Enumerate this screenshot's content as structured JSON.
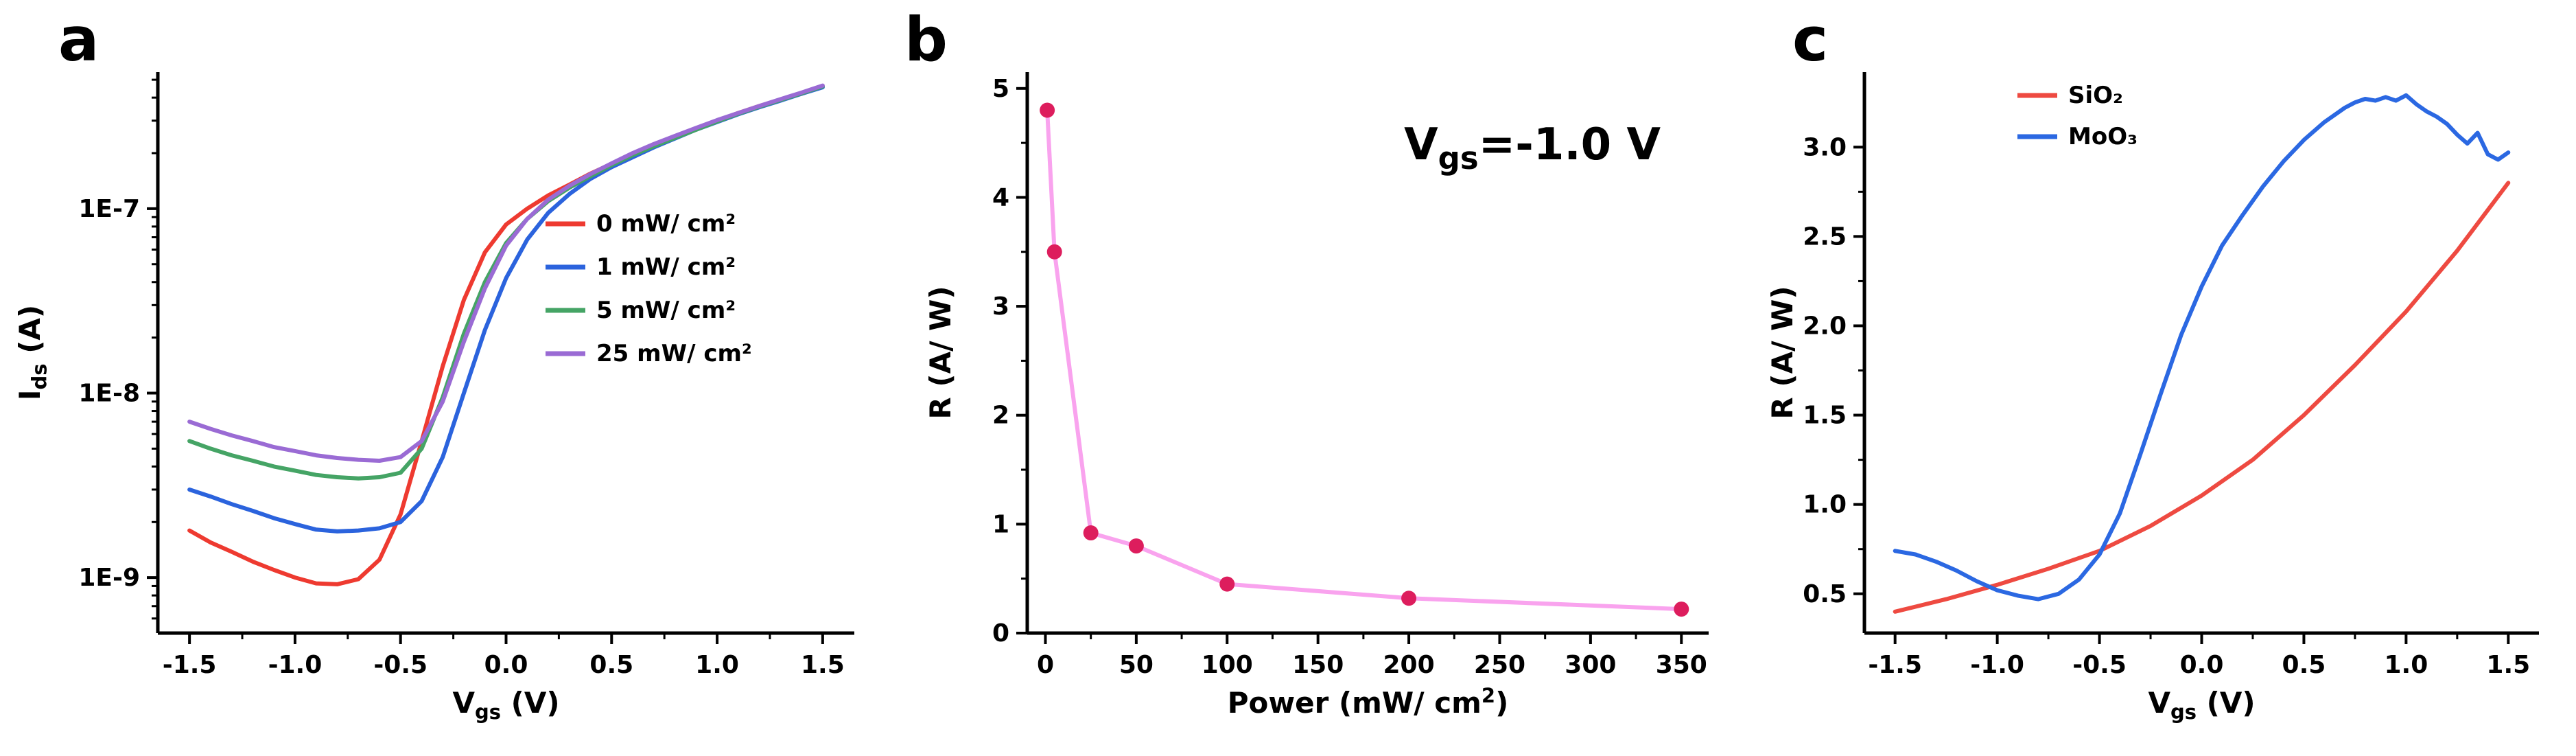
{
  "figure": {
    "background": "#ffffff"
  },
  "panels": [
    {
      "label": "a"
    },
    {
      "label": "b"
    },
    {
      "label": "c"
    }
  ],
  "chart_data": [
    {
      "id": "a",
      "type": "line",
      "title": "",
      "xlabel_parts": [
        {
          "t": "V"
        },
        {
          "t": "gs",
          "s": "sub"
        },
        {
          "t": " (V)"
        }
      ],
      "ylabel_parts": [
        {
          "t": "I"
        },
        {
          "t": "ds",
          "s": "sub"
        },
        {
          "t": " (A)"
        }
      ],
      "x": {
        "lim": [
          -1.65,
          1.65
        ],
        "ticks": [
          -1.5,
          -1.0,
          -0.5,
          0.0,
          0.5,
          1.0,
          1.5
        ],
        "labels": [
          "-1.5",
          "-1.0",
          "-0.5",
          "0.0",
          "0.5",
          "1.0",
          "1.5"
        ]
      },
      "y": {
        "scale": "log",
        "lim": [
          5e-10,
          5.5e-07
        ],
        "ticks": [
          1e-09,
          1e-08,
          1e-07
        ],
        "labels": [
          "1E-9",
          "1E-8",
          "1E-7"
        ]
      },
      "legend_position": "inside-center-right",
      "series": [
        {
          "name": "0 mW/ cm²",
          "color": "#ee3a30",
          "x": [
            -1.5,
            -1.4,
            -1.3,
            -1.2,
            -1.1,
            -1.0,
            -0.9,
            -0.8,
            -0.7,
            -0.6,
            -0.5,
            -0.4,
            -0.3,
            -0.2,
            -0.1,
            0,
            0.1,
            0.2,
            0.3,
            0.4,
            0.5,
            0.6,
            0.7,
            0.8,
            0.9,
            1.0,
            1.1,
            1.2,
            1.3,
            1.4,
            1.5
          ],
          "y": [
            1.8e-09,
            1.55e-09,
            1.38e-09,
            1.22e-09,
            1.1e-09,
            1e-09,
            9.3e-10,
            9.2e-10,
            9.8e-10,
            1.25e-09,
            2.2e-09,
            5.5e-09,
            1.4e-08,
            3.2e-08,
            5.8e-08,
            8.2e-08,
            1e-07,
            1.18e-07,
            1.35e-07,
            1.55e-07,
            1.75e-07,
            1.98e-07,
            2.2e-07,
            2.45e-07,
            2.7e-07,
            3e-07,
            3.3e-07,
            3.6e-07,
            3.9e-07,
            4.2e-07,
            4.6e-07
          ]
        },
        {
          "name": "1 mW/ cm²",
          "color": "#2b63dd",
          "x": [
            -1.5,
            -1.4,
            -1.3,
            -1.2,
            -1.1,
            -1.0,
            -0.9,
            -0.8,
            -0.7,
            -0.6,
            -0.5,
            -0.4,
            -0.3,
            -0.2,
            -0.1,
            0,
            0.1,
            0.2,
            0.3,
            0.4,
            0.5,
            0.6,
            0.7,
            0.8,
            0.9,
            1.0,
            1.1,
            1.2,
            1.3,
            1.4,
            1.5
          ],
          "y": [
            3e-09,
            2.75e-09,
            2.5e-09,
            2.3e-09,
            2.1e-09,
            1.95e-09,
            1.82e-09,
            1.78e-09,
            1.8e-09,
            1.85e-09,
            2e-09,
            2.6e-09,
            4.5e-09,
            1e-08,
            2.2e-08,
            4.2e-08,
            6.8e-08,
            9.5e-08,
            1.2e-07,
            1.45e-07,
            1.68e-07,
            1.9e-07,
            2.15e-07,
            2.4e-07,
            2.68e-07,
            2.95e-07,
            3.25e-07,
            3.55e-07,
            3.85e-07,
            4.2e-07,
            4.55e-07
          ]
        },
        {
          "name": "5 mW/ cm²",
          "color": "#45a465",
          "x": [
            -1.5,
            -1.4,
            -1.3,
            -1.2,
            -1.1,
            -1.0,
            -0.9,
            -0.8,
            -0.7,
            -0.6,
            -0.5,
            -0.4,
            -0.3,
            -0.2,
            -0.1,
            0,
            0.1,
            0.2,
            0.3,
            0.4,
            0.5,
            0.6,
            0.7,
            0.8,
            0.9,
            1.0,
            1.1,
            1.2,
            1.3,
            1.4,
            1.5
          ],
          "y": [
            5.5e-09,
            5e-09,
            4.6e-09,
            4.3e-09,
            4e-09,
            3.8e-09,
            3.6e-09,
            3.5e-09,
            3.45e-09,
            3.5e-09,
            3.7e-09,
            5e-09,
            9.5e-09,
            2.1e-08,
            4e-08,
            6.5e-08,
            8.8e-08,
            1.1e-07,
            1.3e-07,
            1.5e-07,
            1.72e-07,
            1.95e-07,
            2.18e-07,
            2.42e-07,
            2.68e-07,
            2.97e-07,
            3.27e-07,
            3.57e-07,
            3.88e-07,
            4.22e-07,
            4.6e-07
          ]
        },
        {
          "name": "25 mW/ cm²",
          "color": "#9a6bd4",
          "x": [
            -1.5,
            -1.4,
            -1.3,
            -1.2,
            -1.1,
            -1.0,
            -0.9,
            -0.8,
            -0.7,
            -0.6,
            -0.5,
            -0.4,
            -0.3,
            -0.2,
            -0.1,
            0,
            0.1,
            0.2,
            0.3,
            0.4,
            0.5,
            0.6,
            0.7,
            0.8,
            0.9,
            1.0,
            1.1,
            1.2,
            1.3,
            1.4,
            1.5
          ],
          "y": [
            7e-09,
            6.4e-09,
            5.9e-09,
            5.5e-09,
            5.1e-09,
            4.85e-09,
            4.6e-09,
            4.45e-09,
            4.35e-09,
            4.3e-09,
            4.5e-09,
            5.5e-09,
            9e-09,
            1.9e-08,
            3.7e-08,
            6.3e-08,
            8.8e-08,
            1.12e-07,
            1.33e-07,
            1.54e-07,
            1.76e-07,
            2e-07,
            2.24e-07,
            2.48e-07,
            2.74e-07,
            3.02e-07,
            3.3e-07,
            3.6e-07,
            3.92e-07,
            4.26e-07,
            4.65e-07
          ]
        }
      ]
    },
    {
      "id": "b",
      "type": "line",
      "title": "",
      "xlabel_parts": [
        {
          "t": "Power (mW/ cm"
        },
        {
          "t": "2",
          "s": "sup"
        },
        {
          "t": ")"
        }
      ],
      "ylabel_parts": [
        {
          "t": "R (A/ W)"
        }
      ],
      "annotation": {
        "parts": [
          {
            "t": "V"
          },
          {
            "t": "gs",
            "s": "sub"
          },
          {
            "t": "=-1.0 V"
          }
        ]
      },
      "x": {
        "lim": [
          -10,
          365
        ],
        "ticks": [
          0,
          50,
          100,
          150,
          200,
          250,
          300,
          350
        ],
        "labels": [
          "0",
          "50",
          "100",
          "150",
          "200",
          "250",
          "300",
          "350"
        ]
      },
      "y": {
        "scale": "linear",
        "lim": [
          0,
          5.15
        ],
        "ticks": [
          0,
          1,
          2,
          3,
          4,
          5
        ],
        "labels": [
          "0",
          "1",
          "2",
          "3",
          "4",
          "5"
        ]
      },
      "series": [
        {
          "name": "R",
          "color": "#f9a3ee",
          "marker": {
            "r": 11,
            "color": "#dd1d5d"
          },
          "x": [
            1,
            5,
            25,
            50,
            100,
            200,
            350
          ],
          "y": [
            4.8,
            3.5,
            0.92,
            0.8,
            0.45,
            0.32,
            0.22
          ]
        }
      ]
    },
    {
      "id": "c",
      "type": "line",
      "title": "",
      "xlabel_parts": [
        {
          "t": "V"
        },
        {
          "t": "gs",
          "s": "sub"
        },
        {
          "t": " (V)"
        }
      ],
      "ylabel_parts": [
        {
          "t": "R (A/ W)"
        }
      ],
      "x": {
        "lim": [
          -1.65,
          1.65
        ],
        "ticks": [
          -1.5,
          -1.0,
          -0.5,
          0.0,
          0.5,
          1.0,
          1.5
        ],
        "labels": [
          "-1.5",
          "-1.0",
          "-0.5",
          "0.0",
          "0.5",
          "1.0",
          "1.5"
        ]
      },
      "y": {
        "scale": "linear",
        "lim": [
          0.28,
          3.42
        ],
        "ticks": [
          0.5,
          1.0,
          1.5,
          2.0,
          2.5,
          3.0
        ],
        "labels": [
          "0.5",
          "1.0",
          "1.5",
          "2.0",
          "2.5",
          "3.0"
        ]
      },
      "legend_position": "inside-top-center",
      "series": [
        {
          "name": "SiO₂",
          "color": "#ee4a41",
          "x": [
            -1.5,
            -1.25,
            -1.0,
            -0.75,
            -0.5,
            -0.25,
            0,
            0.25,
            0.5,
            0.75,
            1.0,
            1.25,
            1.5
          ],
          "y": [
            0.4,
            0.47,
            0.55,
            0.64,
            0.74,
            0.88,
            1.05,
            1.25,
            1.5,
            1.78,
            2.08,
            2.42,
            2.8
          ]
        },
        {
          "name": "MoO₃",
          "color": "#2b68e2",
          "x": [
            -1.5,
            -1.4,
            -1.3,
            -1.2,
            -1.1,
            -1.0,
            -0.9,
            -0.8,
            -0.7,
            -0.6,
            -0.5,
            -0.4,
            -0.3,
            -0.2,
            -0.1,
            0,
            0.1,
            0.2,
            0.3,
            0.4,
            0.5,
            0.6,
            0.7,
            0.75,
            0.8,
            0.85,
            0.9,
            0.95,
            1.0,
            1.05,
            1.1,
            1.15,
            1.2,
            1.25,
            1.3,
            1.35,
            1.4,
            1.45,
            1.5
          ],
          "y": [
            0.74,
            0.72,
            0.68,
            0.63,
            0.57,
            0.52,
            0.49,
            0.47,
            0.5,
            0.58,
            0.72,
            0.95,
            1.28,
            1.62,
            1.95,
            2.22,
            2.45,
            2.62,
            2.78,
            2.92,
            3.04,
            3.14,
            3.22,
            3.25,
            3.27,
            3.26,
            3.28,
            3.26,
            3.29,
            3.24,
            3.2,
            3.17,
            3.13,
            3.07,
            3.02,
            3.08,
            2.96,
            2.93,
            2.97
          ]
        }
      ]
    }
  ]
}
